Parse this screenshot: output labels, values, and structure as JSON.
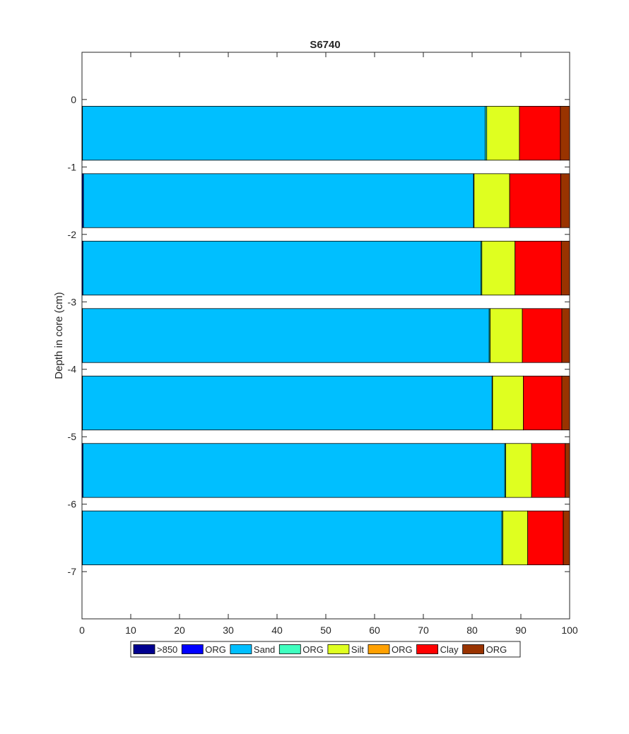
{
  "chart_data": {
    "type": "bar",
    "orientation": "horizontal",
    "stacked": true,
    "title": "S6740",
    "xlabel": "",
    "ylabel": "Depth in core (cm)",
    "xlim": [
      0,
      100
    ],
    "ylim": [
      -7.7,
      0.7
    ],
    "xticks": [
      0,
      10,
      20,
      30,
      40,
      50,
      60,
      70,
      80,
      90,
      100
    ],
    "yticks": [
      0,
      -1,
      -2,
      -3,
      -4,
      -5,
      -6,
      -7
    ],
    "grid": false,
    "legend_position": "bottom",
    "depths": [
      -0.5,
      -1.5,
      -2.5,
      -3.5,
      -4.5,
      -5.5,
      -6.5
    ],
    "bar_height": 0.8,
    "series": [
      {
        "name": ">850",
        "color": "#00008f",
        "values": [
          0.1,
          0.3,
          0.2,
          0.1,
          0.1,
          0.2,
          0.1
        ]
      },
      {
        "name": "ORG",
        "color": "#0000ff",
        "values": [
          0.0,
          0.0,
          0.0,
          0.0,
          0.0,
          0.0,
          0.0
        ]
      },
      {
        "name": "Sand",
        "color": "#00bfff",
        "values": [
          82.6,
          80.0,
          81.6,
          83.4,
          84.0,
          86.5,
          86.0
        ]
      },
      {
        "name": "ORG",
        "color": "#3fffbf",
        "values": [
          0.3,
          0.1,
          0.2,
          0.2,
          0.1,
          0.2,
          0.2
        ]
      },
      {
        "name": "Silt",
        "color": "#dfff20",
        "values": [
          6.7,
          7.3,
          6.8,
          6.6,
          6.3,
          5.3,
          5.1
        ]
      },
      {
        "name": "ORG",
        "color": "#ffa000",
        "values": [
          0.0,
          0.0,
          0.0,
          0.0,
          0.0,
          0.0,
          0.0
        ]
      },
      {
        "name": "Clay",
        "color": "#ff0000",
        "values": [
          8.4,
          10.5,
          9.5,
          8.1,
          7.9,
          6.9,
          7.3
        ]
      },
      {
        "name": "ORG",
        "color": "#993300",
        "values": [
          1.9,
          1.8,
          1.7,
          1.6,
          1.6,
          0.9,
          1.3
        ]
      }
    ]
  }
}
